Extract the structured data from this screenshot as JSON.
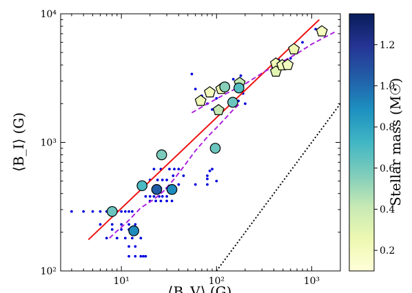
{
  "chart_data": {
    "type": "scatter",
    "xlabel": "⟨B_V⟩ (G)",
    "ylabel": "⟨B_I⟩ (G)",
    "xscale": "log",
    "yscale": "log",
    "xlim": [
      2.3,
      2000
    ],
    "ylim": [
      100,
      10000
    ],
    "x_ticks": [
      {
        "v": 10,
        "label": "10¹"
      },
      {
        "v": 100,
        "label": "10²"
      },
      {
        "v": 1000,
        "label": "10³"
      }
    ],
    "y_ticks": [
      {
        "v": 100,
        "label": "10²"
      },
      {
        "v": 1000,
        "label": "10³"
      },
      {
        "v": 10000,
        "label": "10⁴"
      }
    ],
    "colorbar": {
      "label": "Stellar mass (M☉)",
      "range": [
        0.1,
        1.35
      ],
      "ticks": [
        {
          "v": 0.2,
          "label": "0.2"
        },
        {
          "v": 0.4,
          "label": "0.4"
        },
        {
          "v": 0.6,
          "label": "0.6"
        },
        {
          "v": 0.8,
          "label": "0.8"
        },
        {
          "v": 1.0,
          "label": "1.0"
        },
        {
          "v": 1.2,
          "label": "1.2"
        }
      ],
      "colormap_stops": [
        "#ffffd9",
        "#edf8b1",
        "#c7e9b4",
        "#7fcdbb",
        "#41b6c4",
        "#1d91c0",
        "#225ea8",
        "#253494",
        "#081d58"
      ]
    },
    "small_points": {
      "color": "#0000dd",
      "points": [
        [
          3,
          290
        ],
        [
          4,
          290
        ],
        [
          5,
          290
        ],
        [
          6,
          290
        ],
        [
          7,
          290
        ],
        [
          9,
          290
        ],
        [
          10,
          290
        ],
        [
          11,
          290
        ],
        [
          12,
          290
        ],
        [
          13,
          290
        ],
        [
          6,
          230
        ],
        [
          8,
          230
        ],
        [
          10,
          230
        ],
        [
          12,
          230
        ],
        [
          14,
          230
        ],
        [
          8,
          210
        ],
        [
          10,
          210
        ],
        [
          12,
          210
        ],
        [
          14,
          210
        ],
        [
          7,
          180
        ],
        [
          9,
          180
        ],
        [
          11,
          180
        ],
        [
          13,
          180
        ],
        [
          16,
          180
        ],
        [
          12,
          130
        ],
        [
          14,
          130
        ],
        [
          16,
          130
        ],
        [
          17,
          130
        ],
        [
          18,
          130
        ],
        [
          12,
          155
        ],
        [
          14,
          155
        ],
        [
          18,
          380
        ],
        [
          20,
          380
        ],
        [
          22,
          380
        ],
        [
          25,
          380
        ],
        [
          27,
          380
        ],
        [
          30,
          380
        ],
        [
          20,
          350
        ],
        [
          23,
          350
        ],
        [
          26,
          350
        ],
        [
          30,
          350
        ],
        [
          34,
          350
        ],
        [
          22,
          440
        ],
        [
          26,
          440
        ],
        [
          30,
          440
        ],
        [
          35,
          440
        ],
        [
          20,
          510
        ],
        [
          24,
          510
        ],
        [
          27,
          510
        ],
        [
          30,
          510
        ],
        [
          22,
          620
        ],
        [
          26,
          620
        ],
        [
          32,
          620
        ],
        [
          36,
          620
        ],
        [
          40,
          620
        ],
        [
          35,
          550
        ],
        [
          45,
          550
        ],
        [
          40,
          470
        ],
        [
          60,
          470
        ],
        [
          80,
          520
        ],
        [
          80,
          550
        ],
        [
          85,
          600
        ],
        [
          90,
          620
        ],
        [
          80,
          470
        ],
        [
          100,
          500
        ],
        [
          55,
          3400
        ],
        [
          60,
          2600
        ],
        [
          70,
          2300
        ],
        [
          80,
          2000
        ],
        [
          90,
          1800
        ],
        [
          100,
          2200
        ],
        [
          110,
          2500
        ],
        [
          130,
          2800
        ],
        [
          150,
          3100
        ],
        [
          160,
          2600
        ],
        [
          180,
          3300
        ],
        [
          190,
          2400
        ],
        [
          200,
          2000
        ],
        [
          170,
          2100
        ],
        [
          450,
          4400
        ],
        [
          500,
          4000
        ],
        [
          600,
          4500
        ],
        [
          800,
          6000
        ],
        [
          1100,
          7600
        ],
        [
          400,
          3700
        ]
      ]
    },
    "stars": {
      "marker": "circle",
      "points": [
        {
          "x": 8,
          "y": 290,
          "mass": 0.62
        },
        {
          "x": 13.5,
          "y": 205,
          "mass": 0.9
        },
        {
          "x": 16.5,
          "y": 460,
          "mass": 0.7
        },
        {
          "x": 23.5,
          "y": 430,
          "mass": 1.05
        },
        {
          "x": 26.5,
          "y": 800,
          "mass": 0.58
        },
        {
          "x": 34,
          "y": 430,
          "mass": 0.9
        },
        {
          "x": 97,
          "y": 900,
          "mass": 0.62
        },
        {
          "x": 122,
          "y": 2700,
          "mass": 0.55
        },
        {
          "x": 148,
          "y": 2050,
          "mass": 0.62
        },
        {
          "x": 172,
          "y": 2650,
          "mass": 0.68
        }
      ]
    },
    "pentagons": {
      "marker": "pentagon",
      "points": [
        {
          "x": 68,
          "y": 2100,
          "mass": 0.22
        },
        {
          "x": 85,
          "y": 2450,
          "mass": 0.22
        },
        {
          "x": 105,
          "y": 1780,
          "mass": 0.42
        },
        {
          "x": 112,
          "y": 2600,
          "mass": 0.25
        },
        {
          "x": 175,
          "y": 2900,
          "mass": 0.42
        },
        {
          "x": 420,
          "y": 4100,
          "mass": 0.22
        },
        {
          "x": 420,
          "y": 3550,
          "mass": 0.3
        },
        {
          "x": 490,
          "y": 3980,
          "mass": 0.22
        },
        {
          "x": 560,
          "y": 4000,
          "mass": 0.2
        },
        {
          "x": 650,
          "y": 5300,
          "mass": 0.25
        },
        {
          "x": 1280,
          "y": 7300,
          "mass": 0.2
        }
      ]
    },
    "lines": [
      {
        "style": "solid",
        "color": "#ee1111",
        "points": [
          [
            4.5,
            175
          ],
          [
            1200,
            9000
          ]
        ]
      },
      {
        "style": "dashed",
        "color": "#aa22dd",
        "points": [
          [
            7.5,
            180
          ],
          [
            8.7,
            200
          ],
          [
            11.5,
            240
          ],
          [
            16,
            310
          ],
          [
            22,
            360
          ],
          [
            28,
            420
          ],
          [
            36,
            520
          ],
          [
            46,
            660
          ],
          [
            60,
            860
          ],
          [
            80,
            1100
          ],
          [
            100,
            1300
          ],
          [
            120,
            1500
          ],
          [
            145,
            1750
          ],
          [
            175,
            2000
          ]
        ]
      },
      {
        "style": "dashed",
        "color": "#aa22dd",
        "points": [
          [
            55,
            1700
          ],
          [
            80,
            1990
          ],
          [
            120,
            2350
          ],
          [
            200,
            2850
          ],
          [
            300,
            3450
          ],
          [
            450,
            4100
          ],
          [
            700,
            4900
          ],
          [
            1000,
            5800
          ],
          [
            1800,
            7300
          ]
        ]
      },
      {
        "style": "dotted",
        "color": "#000000",
        "points": [
          [
            100,
            100
          ],
          [
            2000,
            2000
          ]
        ]
      }
    ]
  }
}
